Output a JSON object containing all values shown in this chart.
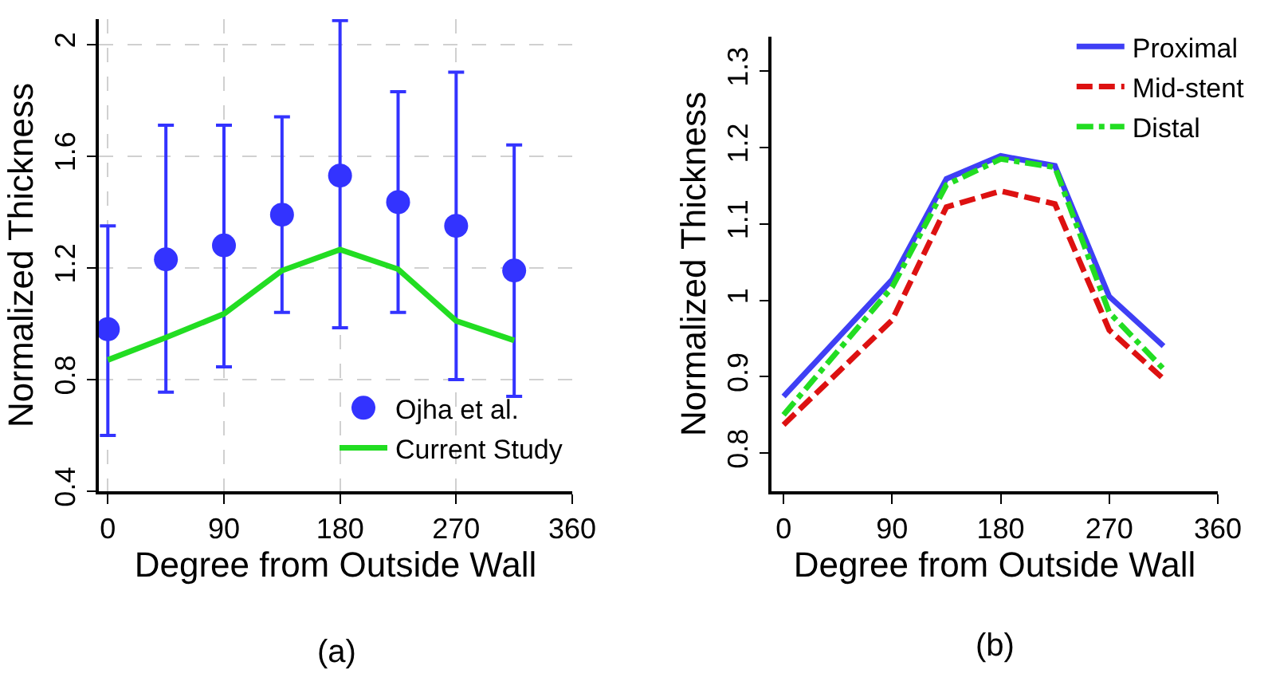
{
  "chart_data": [
    {
      "type": "scatter",
      "xlabel": "Degree from Outside Wall",
      "ylabel": "Normalized Thickness",
      "xlim": [
        -7,
        360
      ],
      "ylim": [
        0.4,
        2.09
      ],
      "xticks": [
        0,
        90,
        180,
        270,
        360
      ],
      "yticks": [
        0.4,
        0.8,
        1.2,
        1.6,
        2
      ],
      "grid": true,
      "legend": "bottom right",
      "annotations": [
        "(a)"
      ],
      "x": [
        0,
        45,
        90,
        135,
        180,
        225,
        270,
        315
      ],
      "series": [
        {
          "name": "Ojha et al.",
          "type": "scatter",
          "marker": "circle",
          "color": "#3333ff",
          "values": [
            0.98,
            1.23,
            1.28,
            1.39,
            1.53,
            1.435,
            1.35,
            1.19
          ],
          "errors": [
            [
              0.6,
              1.35
            ],
            [
              0.755,
              1.71
            ],
            [
              0.845,
              1.71
            ],
            [
              1.04,
              1.74
            ],
            [
              0.985,
              2.085
            ],
            [
              1.04,
              1.83
            ],
            [
              0.8,
              1.9
            ],
            [
              0.74,
              1.64
            ]
          ]
        },
        {
          "name": "Current Study",
          "type": "line",
          "line_style": "solid",
          "color": "#22dd22",
          "values": [
            0.87,
            0.95,
            1.035,
            1.19,
            1.265,
            1.195,
            1.01,
            0.94
          ]
        }
      ]
    },
    {
      "type": "line",
      "xlabel": "Degree from Outside Wall",
      "ylabel": "Normalized Thickness",
      "xlim": [
        -10,
        360
      ],
      "ylim": [
        0.75,
        1.345
      ],
      "xticks": [
        0,
        90,
        180,
        270,
        360
      ],
      "yticks": [
        0.8,
        0.9,
        1,
        1.1,
        1.2,
        1.3
      ],
      "grid": false,
      "legend": "top right",
      "annotations": [
        "(b)"
      ],
      "x": [
        0,
        90,
        135,
        180,
        225,
        270,
        315
      ],
      "series": [
        {
          "name": "Proximal",
          "line_style": "solid",
          "color": "#3f3ff5",
          "values": [
            0.874,
            1.027,
            1.159,
            1.189,
            1.176,
            1.005,
            0.94
          ]
        },
        {
          "name": "Mid-stent",
          "line_style": "dashed",
          "color": "#dd1111",
          "values": [
            0.837,
            0.974,
            1.122,
            1.143,
            1.126,
            0.961,
            0.897
          ]
        },
        {
          "name": "Distal",
          "line_style": "dashdot",
          "color": "#22dd22",
          "values": [
            0.85,
            1.017,
            1.151,
            1.185,
            1.174,
            0.984,
            0.91
          ]
        }
      ]
    }
  ]
}
